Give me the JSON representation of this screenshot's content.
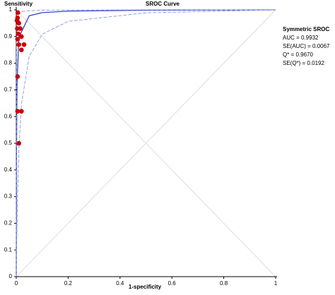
{
  "chart_data": {
    "type": "sroc",
    "title": "SROC Curve",
    "y_label": "Sensitivity",
    "x_label": "1-specificity",
    "annotation_title": "Symmetric SROC",
    "annotations": [
      "AUC = 0.9932",
      "SE(AUC) = 0.0067",
      "Q* = 0.9670",
      "SE(Q*) = 0.0192"
    ],
    "xlim": [
      0,
      1
    ],
    "ylim": [
      0,
      1
    ],
    "xticks": [
      0,
      0.2,
      0.4,
      0.6,
      0.8,
      1
    ],
    "yticks": [
      0,
      0.1,
      0.2,
      0.3,
      0.4,
      0.5,
      0.6,
      0.7,
      0.8,
      0.9,
      1
    ],
    "points": {
      "color": "#cc0000",
      "x": [
        0.005,
        0.01,
        0.004,
        0.008,
        0.02,
        0.005,
        0.01,
        0.03,
        0.02,
        0.005,
        0.005,
        0.02,
        0.01,
        0.015,
        0.003,
        0.006
      ],
      "values": [
        0.97,
        0.95,
        0.93,
        0.91,
        0.9,
        0.89,
        0.87,
        0.87,
        0.85,
        0.75,
        0.62,
        0.62,
        0.5,
        0.93,
        0.96,
        0.99
      ]
    },
    "curves": [
      {
        "color": "#3344cc",
        "x": [
          0,
          0.001,
          0.003,
          0.01,
          0.05,
          0.1,
          0.2,
          0.5,
          1
        ],
        "values": [
          0,
          0.465,
          0.72,
          0.897,
          0.978,
          0.9897,
          0.9954,
          0.9988,
          1
        ]
      },
      {
        "color": "#8899dd",
        "x": [
          0,
          0.001,
          0.005,
          0.02,
          0.1,
          0.5,
          1
        ],
        "values": [
          0,
          0.89,
          0.976,
          0.994,
          0.999,
          1,
          1
        ]
      },
      {
        "color": "#8899dd",
        "x": [
          0,
          0.001,
          0.005,
          0.01,
          0.02,
          0.05,
          0.1,
          0.2,
          0.5,
          1
        ],
        "values": [
          0,
          0.083,
          0.31,
          0.475,
          0.648,
          0.826,
          0.909,
          0.957,
          0.989,
          1
        ]
      }
    ]
  }
}
